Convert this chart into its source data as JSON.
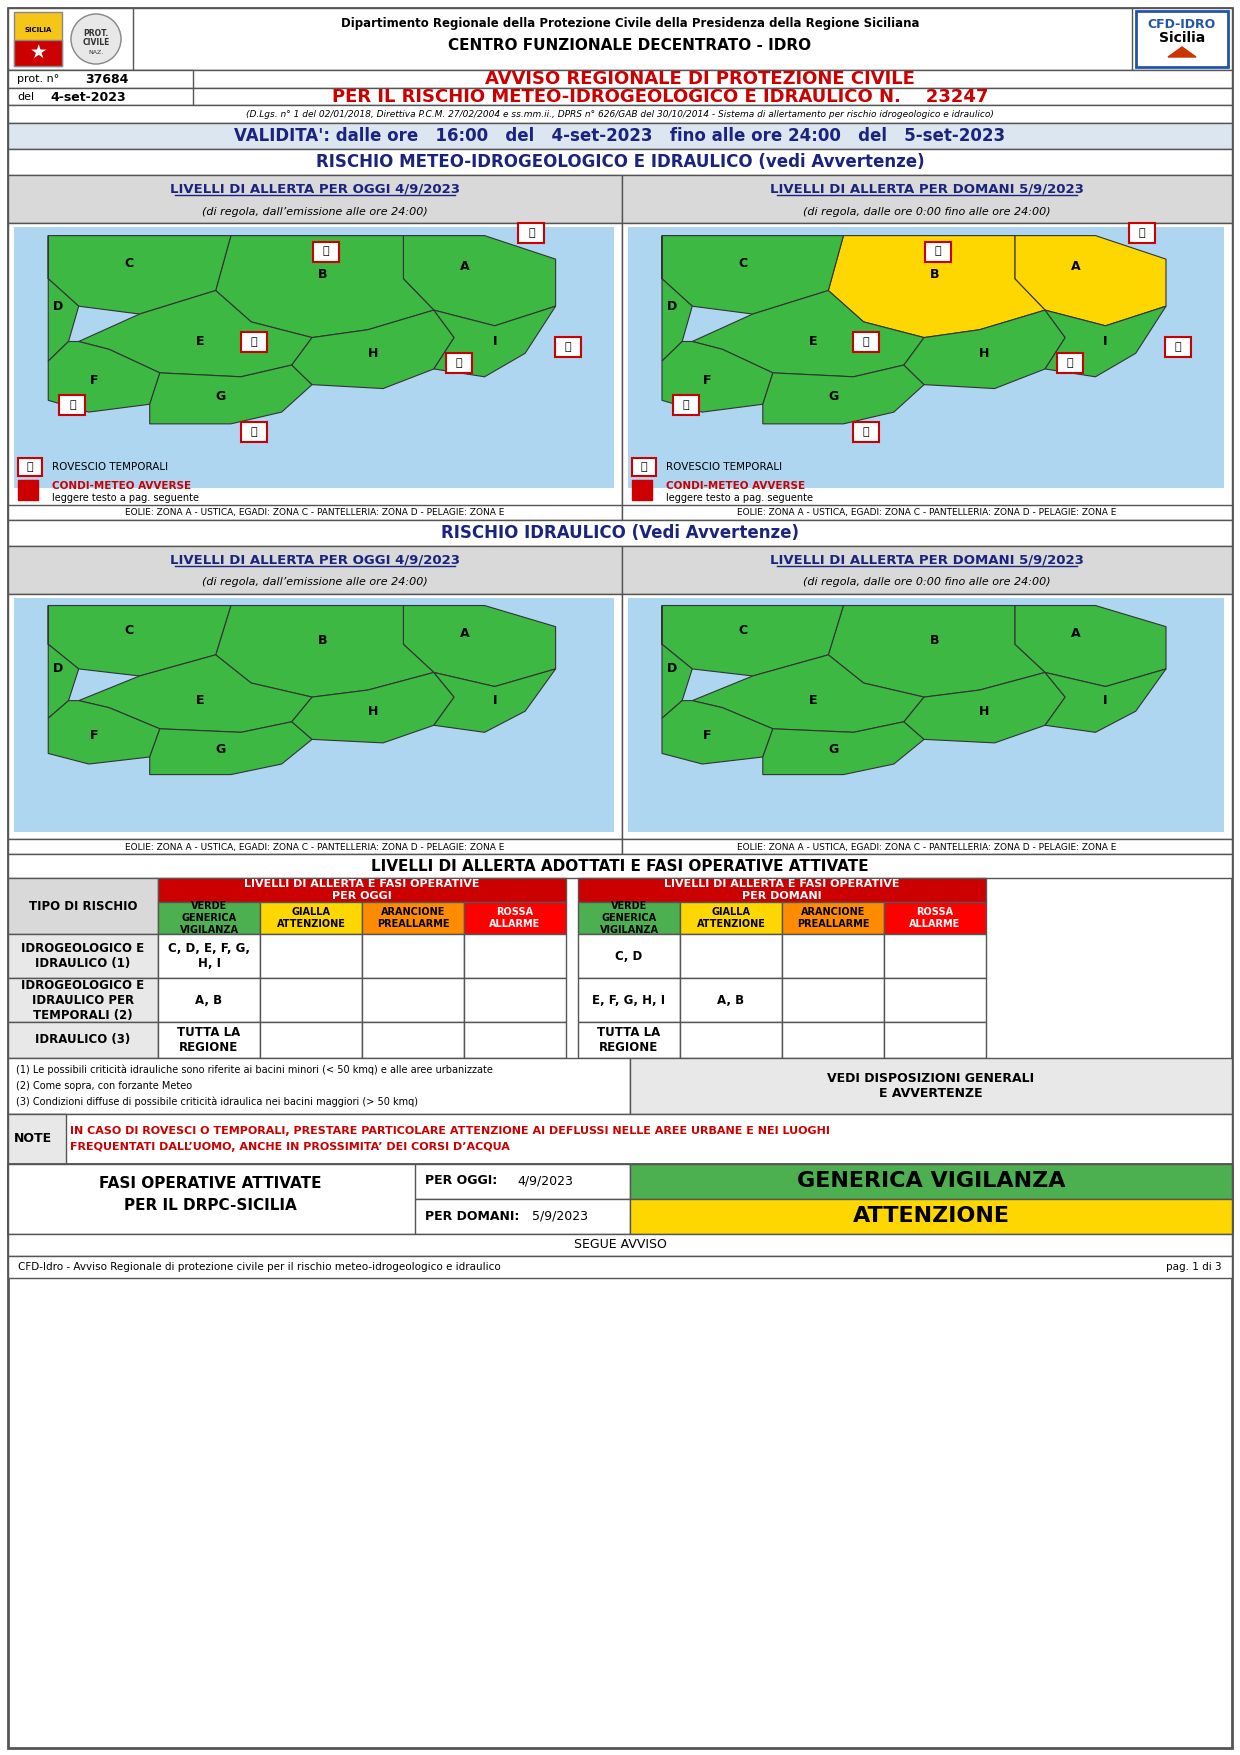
{
  "title_dept": "Dipartimento Regionale della Protezione Civile della Presidenza della Regione Siciliana",
  "title_centro": "CENTRO FUNZIONALE DECENTRATO - IDRO",
  "prot_label": "prot. n°",
  "prot_num": "37684",
  "del_label": "del",
  "del_date": "4-set-2023",
  "avviso_line1": "AVVISO REGIONALE DI PROTEZIONE CIVILE",
  "avviso_line2": "PER IL RISCHIO METEO-IDROGEOLOGICO E IDRAULICO N.",
  "avviso_num": "23247",
  "decreto": "(D.Lgs. n° 1 del 02/01/2018, Direttiva P.C.M. 27/02/2004 e ss.mm.ii., DPRS n° 626/GAB del 30/10/2014 - Sistema di allertamento per rischio idrogeologico e idraulico)",
  "validita_str": "VALIDITA': dalle ore   16:00   del   4-set-2023   fino alle ore 24:00   del   5-set-2023",
  "rischio_title": "RISCHIO METEO-IDROGEOLOGICO E IDRAULICO (vedi Avvertenze)",
  "livelli_oggi_title": "LIVELLI DI ALLERTA PER OGGI 4/9/2023",
  "livelli_oggi_sub": "(di regola, dall’emissione alle ore 24:00)",
  "livelli_domani_title": "LIVELLI DI ALLERTA PER DOMANI 5/9/2023",
  "livelli_domani_sub": "(di regola, dalle ore 0:00 fino alle ore 24:00)",
  "eolie_text": "EOLIE: ZONA A - USTICA, EGADI: ZONA C - PANTELLERIA: ZONA D - PELAGIE: ZONA E",
  "rischio_idraulico_title": "RISCHIO IDRAULICO (Vedi Avvertenze)",
  "livelli_idraulico_oggi": "LIVELLI DI ALLERTA PER OGGI 4/9/2023",
  "livelli_idraulico_oggi_sub": "(di regola, dall’emissione alle ore 24:00)",
  "livelli_idraulico_domani": "LIVELLI DI ALLERTA PER DOMANI 5/9/2023",
  "livelli_idraulico_domani_sub": "(di regola, dalle ore 0:00 fino alle ore 24:00)",
  "table_title": "LIVELLI DI ALLERTA ADOTTATI E FASI OPERATIVE ATTIVATE",
  "col_oggi_header": "LIVELLI DI ALLERTA E FASI OPERATIVE\nPER OGGI",
  "col_domani_header": "LIVELLI DI ALLERTA E FASI OPERATIVE\nPER DOMANI",
  "col_verde": "VERDE\nGENERICA\nVIGILANZA",
  "col_gialla": "GIALLA\nATTENZIONE",
  "col_arancione": "ARANCIONE\nPREALLARME",
  "col_rossa": "ROSSA\nALLARME",
  "row_tipo": "TIPO DI RISCHIO",
  "row_idro_label": "IDROGEOLOGICO E\nIDRAULICO (1)",
  "row_idro_temporali_label": "IDROGEOLOGICO E\nIDRAULICO PER\nTEMPORALI (2)",
  "row_idraulico_label": "IDRAULICO (3)",
  "idro_oggi_verde": "C, D, E, F, G,\nH, I",
  "idro_oggi_gialla": "",
  "idro_oggi_arancione": "",
  "idro_oggi_rossa": "",
  "idro_domani_verde": "C, D",
  "idro_domani_gialla": "",
  "idro_domani_arancione": "",
  "idro_domani_rossa": "",
  "temporali_oggi_verde": "A, B",
  "temporali_oggi_gialla": "",
  "temporali_oggi_arancione": "",
  "temporali_oggi_rossa": "",
  "temporali_domani_verde": "E, F, G, H, I",
  "temporali_domani_gialla": "A, B",
  "temporali_domani_arancione": "",
  "temporali_domani_rossa": "",
  "idraulico_oggi_verde": "TUTTA LA\nREGIONE",
  "idraulico_oggi_gialla": "",
  "idraulico_oggi_arancione": "",
  "idraulico_oggi_rossa": "",
  "idraulico_domani_verde": "TUTTA LA\nREGIONE",
  "idraulico_domani_gialla": "",
  "idraulico_domani_arancione": "",
  "idraulico_domani_rossa": "",
  "note1": "(1) Le possibili criticità idrauliche sono riferite ai bacini minori (< 50 kmq) e alle aree urbanizzate",
  "note2": "(2) Come sopra, con forzante Meteo",
  "note3": "(3) Condizioni diffuse di possibile criticità idraulica nei bacini maggiori (> 50 kmq)",
  "vedi_disposizioni": "VEDI DISPOSIZIONI GENERALI\nE AVVERTENZE",
  "note_label": "NOTE",
  "note_text_1": "IN CASO DI ROVESCI O TEMPORALI, PRESTARE PARTICOLARE ATTENZIONE AI DEFLUSSI NELLE AREE URBANE E NEI LUOGHI",
  "note_text_2": "FREQUENTATI DALL’UOMO, ANCHE IN PROSSIMITA’ DEI CORSI D’ACQUA",
  "fasi_label1": "FASI OPERATIVE ATTIVATE",
  "fasi_label2": "PER IL DRPC-SICILIA",
  "per_oggi_label": "PER OGGI:",
  "per_oggi_date": "4/9/2023",
  "per_domani_label": "PER DOMANI:",
  "per_domani_date": "5/9/2023",
  "oggi_fase": "GENERICA VIGILANZA",
  "domani_fase": "ATTENZIONE",
  "segue": "SEGUE AVVISO",
  "footer_text": "CFD-Idro - Avviso Regionale di protezione civile per il rischio meteo-idrogeologico e idraulico",
  "footer_page": "pag. 1 di 3",
  "rovescio_label": "ROVESCIO TEMPORALI",
  "condi_label": "CONDI-METEO AVVERSE",
  "condi_sub": "leggere testo a pag. seguente",
  "green_map": "#3cb843",
  "yellow_map": "#ffd700",
  "sea_color": "#aed6f1",
  "col_verde_bg": "#4CAF50",
  "col_gialla_bg": "#FFD700",
  "col_arancione_bg": "#FF8C00",
  "col_rossa_bg": "#FF0000",
  "col_verde_fg": "black",
  "col_gialla_fg": "black",
  "col_arancione_fg": "black",
  "col_rossa_fg": "white",
  "header_red": "#cc0000",
  "table_red": "#cc0000",
  "navy": "#1a237e",
  "dark_blue": "#1f3864",
  "gray_bg": "#d9d9d9",
  "light_gray": "#e8e8e8",
  "validita_bg": "#dce6f1",
  "fasi_oggi_bg": "#4CAF50",
  "fasi_domani_bg": "#FFD700",
  "border": "#555555"
}
